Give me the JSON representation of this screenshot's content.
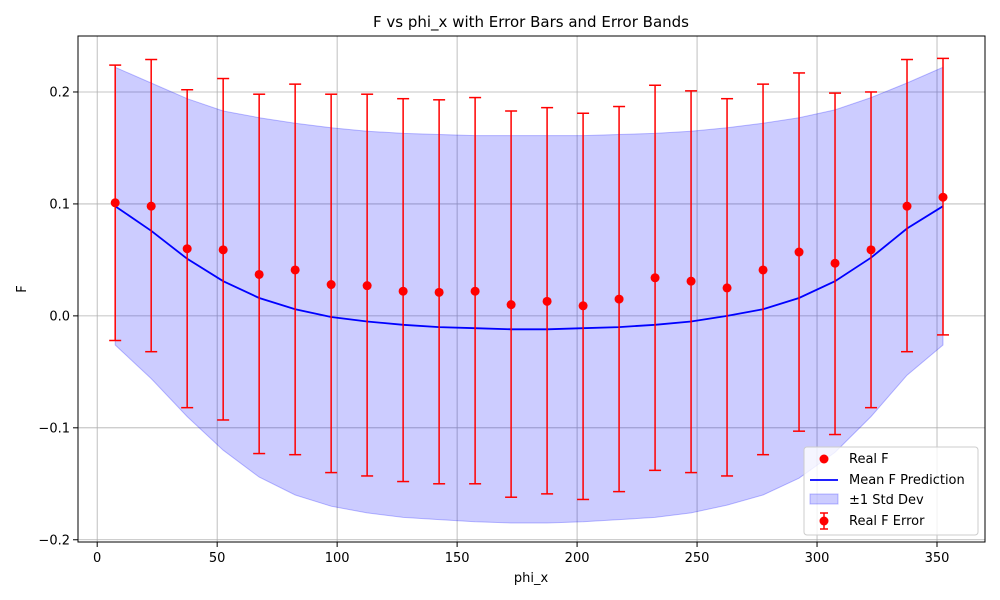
{
  "chart_data": {
    "type": "line",
    "title": "F vs phi_x with Error Bars and Error Bands",
    "xlabel": "phi_x",
    "ylabel": "F",
    "xlim": [
      -8,
      370
    ],
    "ylim": [
      -0.202,
      0.25
    ],
    "xticks": [
      0,
      50,
      100,
      150,
      200,
      250,
      300,
      350
    ],
    "xtick_labels": [
      "0",
      "50",
      "100",
      "150",
      "200",
      "250",
      "300",
      "350"
    ],
    "yticks": [
      -0.2,
      -0.1,
      0.0,
      0.1,
      0.2
    ],
    "ytick_labels": [
      "−0.2",
      "−0.1",
      "0.0",
      "0.1",
      "0.2"
    ],
    "grid": true,
    "legend_position": "lower-right",
    "x": [
      7.5,
      22.5,
      37.5,
      52.5,
      67.5,
      82.5,
      97.5,
      112.5,
      127.5,
      142.5,
      157.5,
      172.5,
      187.5,
      202.5,
      217.5,
      232.5,
      247.5,
      262.5,
      277.5,
      292.5,
      307.5,
      322.5,
      337.5,
      352.5
    ],
    "series": [
      {
        "name": "Real F",
        "kind": "scatter",
        "color": "#ff0000",
        "values": [
          0.101,
          0.098,
          0.06,
          0.059,
          0.037,
          0.041,
          0.028,
          0.027,
          0.022,
          0.021,
          0.022,
          0.01,
          0.013,
          0.009,
          0.015,
          0.034,
          0.031,
          0.025,
          0.041,
          0.057,
          0.047,
          0.059,
          0.098,
          0.106
        ]
      },
      {
        "name": "Mean F Prediction",
        "kind": "line",
        "color": "#0000ff",
        "values": [
          0.098,
          0.076,
          0.051,
          0.031,
          0.016,
          0.006,
          -0.001,
          -0.005,
          -0.008,
          -0.01,
          -0.011,
          -0.012,
          -0.012,
          -0.011,
          -0.01,
          -0.008,
          -0.005,
          0.0,
          0.006,
          0.016,
          0.031,
          0.052,
          0.078,
          0.098
        ]
      },
      {
        "name": "±1 Std Dev",
        "kind": "band",
        "color": "#0000ff",
        "upper": [
          0.222,
          0.208,
          0.194,
          0.183,
          0.177,
          0.172,
          0.168,
          0.165,
          0.163,
          0.162,
          0.161,
          0.161,
          0.161,
          0.161,
          0.162,
          0.163,
          0.165,
          0.168,
          0.172,
          0.177,
          0.184,
          0.195,
          0.208,
          0.222
        ],
        "lower": [
          -0.026,
          -0.056,
          -0.09,
          -0.12,
          -0.144,
          -0.16,
          -0.17,
          -0.176,
          -0.18,
          -0.182,
          -0.184,
          -0.185,
          -0.185,
          -0.184,
          -0.182,
          -0.18,
          -0.176,
          -0.169,
          -0.16,
          -0.145,
          -0.122,
          -0.09,
          -0.053,
          -0.026
        ]
      },
      {
        "name": "Real F Error",
        "kind": "errorbar",
        "color": "#ff0000",
        "upper": [
          0.224,
          0.229,
          0.202,
          0.212,
          0.198,
          0.207,
          0.198,
          0.198,
          0.194,
          0.193,
          0.195,
          0.183,
          0.186,
          0.181,
          0.187,
          0.206,
          0.201,
          0.194,
          0.207,
          0.217,
          0.199,
          0.2,
          0.229,
          0.23
        ],
        "lower": [
          -0.022,
          -0.032,
          -0.082,
          -0.093,
          -0.123,
          -0.124,
          -0.14,
          -0.143,
          -0.148,
          -0.15,
          -0.15,
          -0.162,
          -0.159,
          -0.164,
          -0.157,
          -0.138,
          -0.14,
          -0.143,
          -0.124,
          -0.103,
          -0.106,
          -0.082,
          -0.032,
          -0.017
        ]
      }
    ],
    "legend": [
      "Real F",
      "Mean F Prediction",
      "±1 Std Dev",
      "Real F Error"
    ]
  }
}
